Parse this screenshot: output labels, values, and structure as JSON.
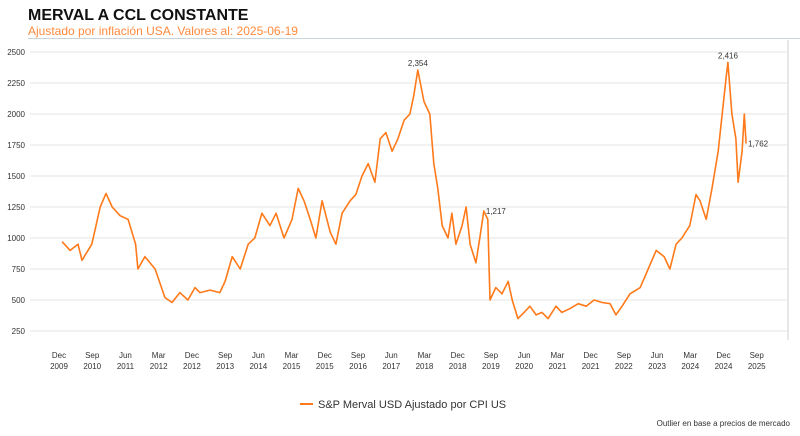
{
  "chart_data": {
    "type": "line",
    "title": "MERVAL A CCL CONSTANTE",
    "subtitle": "Ajustado por inflación USA. Valores al: 2025-06-19",
    "xlabel": "",
    "ylabel": "",
    "ylim": [
      250,
      2500
    ],
    "yticks": [
      250,
      500,
      750,
      1000,
      1250,
      1500,
      1750,
      2000,
      2250,
      2500
    ],
    "xticks": [
      {
        "m": "Dec",
        "y": "2009",
        "t": 2009.92
      },
      {
        "m": "Sep",
        "y": "2010",
        "t": 2010.67
      },
      {
        "m": "Jun",
        "y": "2011",
        "t": 2011.42
      },
      {
        "m": "Mar",
        "y": "2012",
        "t": 2012.17
      },
      {
        "m": "Dec",
        "y": "2012",
        "t": 2012.92
      },
      {
        "m": "Sep",
        "y": "2013",
        "t": 2013.67
      },
      {
        "m": "Jun",
        "y": "2014",
        "t": 2014.42
      },
      {
        "m": "Mar",
        "y": "2015",
        "t": 2015.17
      },
      {
        "m": "Dec",
        "y": "2015",
        "t": 2015.92
      },
      {
        "m": "Sep",
        "y": "2016",
        "t": 2016.67
      },
      {
        "m": "Jun",
        "y": "2017",
        "t": 2017.42
      },
      {
        "m": "Mar",
        "y": "2018",
        "t": 2018.17
      },
      {
        "m": "Dec",
        "y": "2018",
        "t": 2018.92
      },
      {
        "m": "Sep",
        "y": "2019",
        "t": 2019.67
      },
      {
        "m": "Jun",
        "y": "2020",
        "t": 2020.42
      },
      {
        "m": "Mar",
        "y": "2021",
        "t": 2021.17
      },
      {
        "m": "Dec",
        "y": "2021",
        "t": 2021.92
      },
      {
        "m": "Sep",
        "y": "2022",
        "t": 2022.67
      },
      {
        "m": "Jun",
        "y": "2023",
        "t": 2023.42
      },
      {
        "m": "Mar",
        "y": "2024",
        "t": 2024.17
      },
      {
        "m": "Dec",
        "y": "2024",
        "t": 2024.92
      },
      {
        "m": "Sep",
        "y": "2025",
        "t": 2025.67
      }
    ],
    "grid": true,
    "legend_position": "bottom-center",
    "series": [
      {
        "name": "S&P Merval USD Ajustado por CPI US",
        "color": "#ff7a1a",
        "t": [
          2009.99,
          2010.17,
          2010.35,
          2010.44,
          2010.66,
          2010.85,
          2010.98,
          2011.12,
          2011.3,
          2011.48,
          2011.65,
          2011.7,
          2011.86,
          2012.09,
          2012.31,
          2012.47,
          2012.65,
          2012.83,
          2012.99,
          2013.1,
          2013.33,
          2013.55,
          2013.67,
          2013.83,
          2014.01,
          2014.19,
          2014.34,
          2014.5,
          2014.68,
          2014.82,
          2015.0,
          2015.18,
          2015.32,
          2015.45,
          2015.59,
          2015.72,
          2015.86,
          2016.04,
          2016.17,
          2016.31,
          2016.49,
          2016.62,
          2016.76,
          2016.9,
          2017.05,
          2017.17,
          2017.3,
          2017.44,
          2017.57,
          2017.71,
          2017.84,
          2017.93,
          2018.02,
          2018.16,
          2018.29,
          2018.38,
          2018.47,
          2018.57,
          2018.7,
          2018.79,
          2018.88,
          2019.02,
          2019.11,
          2019.2,
          2019.33,
          2019.42,
          2019.51,
          2019.6,
          2019.65,
          2019.78,
          2019.92,
          2020.06,
          2020.15,
          2020.28,
          2020.42,
          2020.55,
          2020.69,
          2020.82,
          2020.96,
          2021.14,
          2021.27,
          2021.45,
          2021.64,
          2021.82,
          2022.0,
          2022.18,
          2022.36,
          2022.49,
          2022.63,
          2022.81,
          2023.04,
          2023.22,
          2023.4,
          2023.58,
          2023.71,
          2023.85,
          2023.98,
          2024.16,
          2024.3,
          2024.39,
          2024.53,
          2024.66,
          2024.8,
          2024.89,
          2024.98,
          2025.02,
          2025.11,
          2025.2,
          2025.25,
          2025.34,
          2025.39,
          2025.43
        ],
        "values": [
          970,
          900,
          950,
          820,
          950,
          1250,
          1360,
          1250,
          1180,
          1150,
          950,
          750,
          850,
          750,
          520,
          480,
          560,
          500,
          600,
          560,
          580,
          560,
          650,
          850,
          750,
          950,
          1000,
          1200,
          1100,
          1200,
          1000,
          1150,
          1400,
          1300,
          1150,
          1000,
          1300,
          1050,
          950,
          1200,
          1300,
          1350,
          1500,
          1600,
          1450,
          1800,
          1850,
          1700,
          1800,
          1950,
          2000,
          2150,
          2354,
          2100,
          2000,
          1600,
          1400,
          1100,
          1000,
          1200,
          950,
          1100,
          1250,
          950,
          800,
          1000,
          1217,
          1150,
          500,
          600,
          550,
          650,
          500,
          350,
          400,
          450,
          380,
          400,
          350,
          450,
          400,
          430,
          470,
          450,
          500,
          480,
          470,
          380,
          450,
          550,
          600,
          750,
          900,
          850,
          750,
          950,
          1000,
          1100,
          1350,
          1300,
          1150,
          1400,
          1700,
          2000,
          2300,
          2416,
          2000,
          1800,
          1450,
          1700,
          2000,
          1762
        ]
      }
    ],
    "annotations": [
      {
        "text": "2,354",
        "t": 2018.02,
        "v": 2354,
        "pos": "above"
      },
      {
        "text": "1,217",
        "t": 2019.51,
        "v": 1217,
        "pos": "right"
      },
      {
        "text": "2,416",
        "t": 2025.02,
        "v": 2416,
        "pos": "above"
      },
      {
        "text": "1,762",
        "t": 2025.43,
        "v": 1762,
        "pos": "right"
      }
    ],
    "footnote": "Outlier en base a precios de mercado"
  }
}
